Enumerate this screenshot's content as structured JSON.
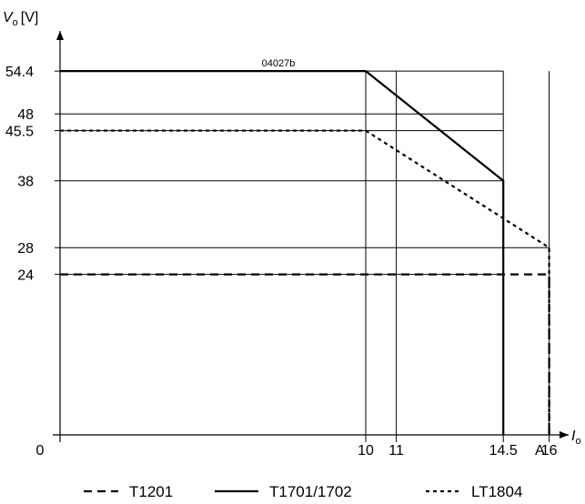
{
  "chart_data": {
    "type": "line",
    "title": "",
    "code_label": "04027b",
    "y_axis": {
      "symbol": "V",
      "subscript": "o",
      "unit": "[V]",
      "ticks": [
        {
          "value": 54.4,
          "label": "54.4"
        },
        {
          "value": 48,
          "label": "48"
        },
        {
          "value": 45.5,
          "label": "45.5"
        },
        {
          "value": 38,
          "label": "38"
        },
        {
          "value": 28,
          "label": "28"
        },
        {
          "value": 24,
          "label": "24"
        }
      ],
      "ylim": [
        0,
        59
      ]
    },
    "x_axis": {
      "symbol": "I",
      "subscript": "o",
      "unit": "A",
      "ticks": [
        {
          "value": 10,
          "label": "10"
        },
        {
          "value": 11,
          "label": "11"
        },
        {
          "value": 14.5,
          "label": "14.5"
        },
        {
          "value": 16,
          "label": "16"
        }
      ],
      "xlim": [
        0,
        17.4
      ]
    },
    "origin_label": "0",
    "series": [
      {
        "name": "T1201",
        "style": "dashed",
        "points": [
          [
            0,
            24
          ],
          [
            16,
            24
          ],
          [
            16,
            0
          ]
        ]
      },
      {
        "name": "T1701/1702",
        "style": "solid",
        "points": [
          [
            0,
            54.4
          ],
          [
            10,
            54.4
          ],
          [
            14.5,
            38
          ],
          [
            14.5,
            0
          ]
        ]
      },
      {
        "name": "LT1804",
        "style": "dotted",
        "points": [
          [
            0,
            45.5
          ],
          [
            10,
            45.5
          ],
          [
            16,
            28
          ],
          [
            16,
            0
          ]
        ]
      }
    ],
    "gridlines": {
      "horizontal": [
        54.4,
        48,
        45.5,
        38,
        28,
        24
      ],
      "vertical": [
        10,
        11,
        14.5,
        16
      ]
    },
    "legend_position": "bottom"
  }
}
